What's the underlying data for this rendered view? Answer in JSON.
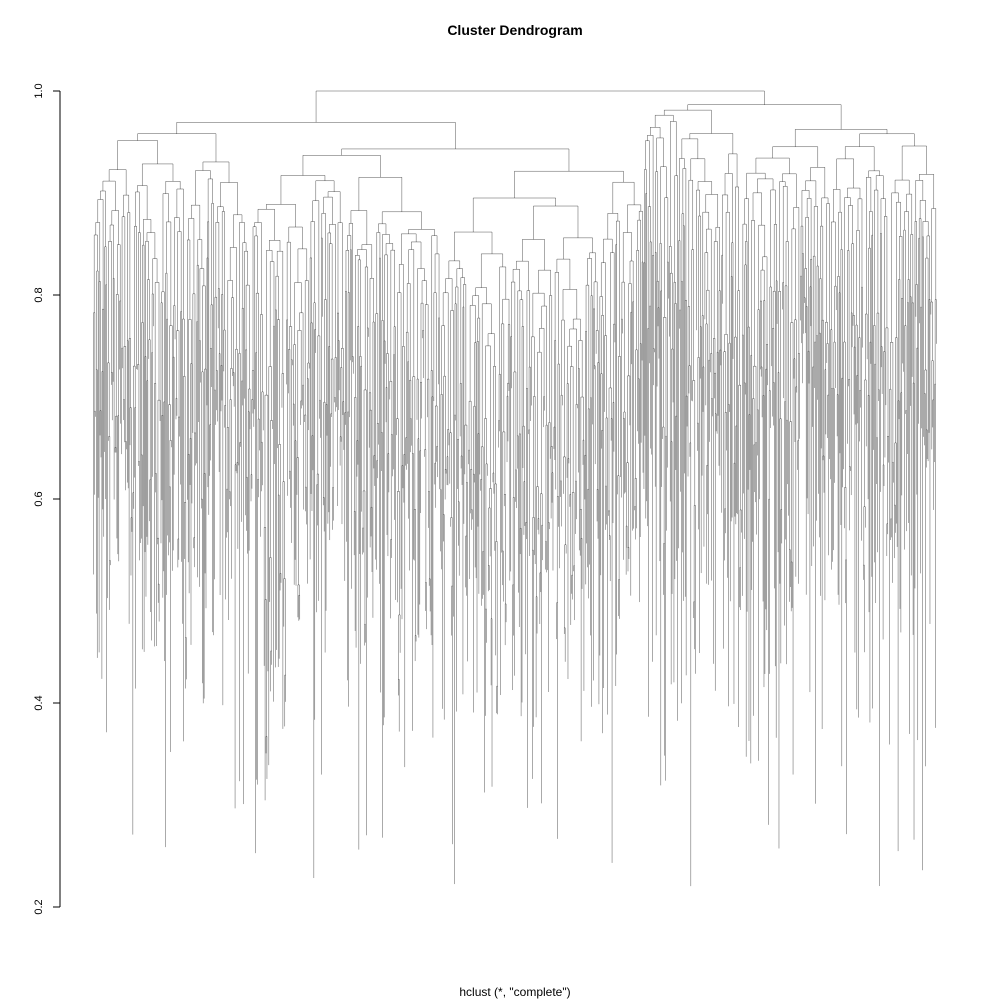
{
  "chart_data": {
    "type": "dendrogram",
    "title": "Cluster Dendrogram",
    "subtitle": "hclust (*, \"complete\")",
    "ylabel": "",
    "ylim": [
      0.2,
      1.0
    ],
    "yticks": [
      0.2,
      0.4,
      0.6,
      0.8,
      1.0
    ],
    "ytick_labels": [
      "0.2",
      "0.4",
      "0.6",
      "0.8",
      "1.0"
    ],
    "root_height": 1.0,
    "leaf_count_estimate": 900,
    "grid": false,
    "legend": "none",
    "colors": {
      "line": "#000000",
      "background": "#ffffff"
    }
  }
}
